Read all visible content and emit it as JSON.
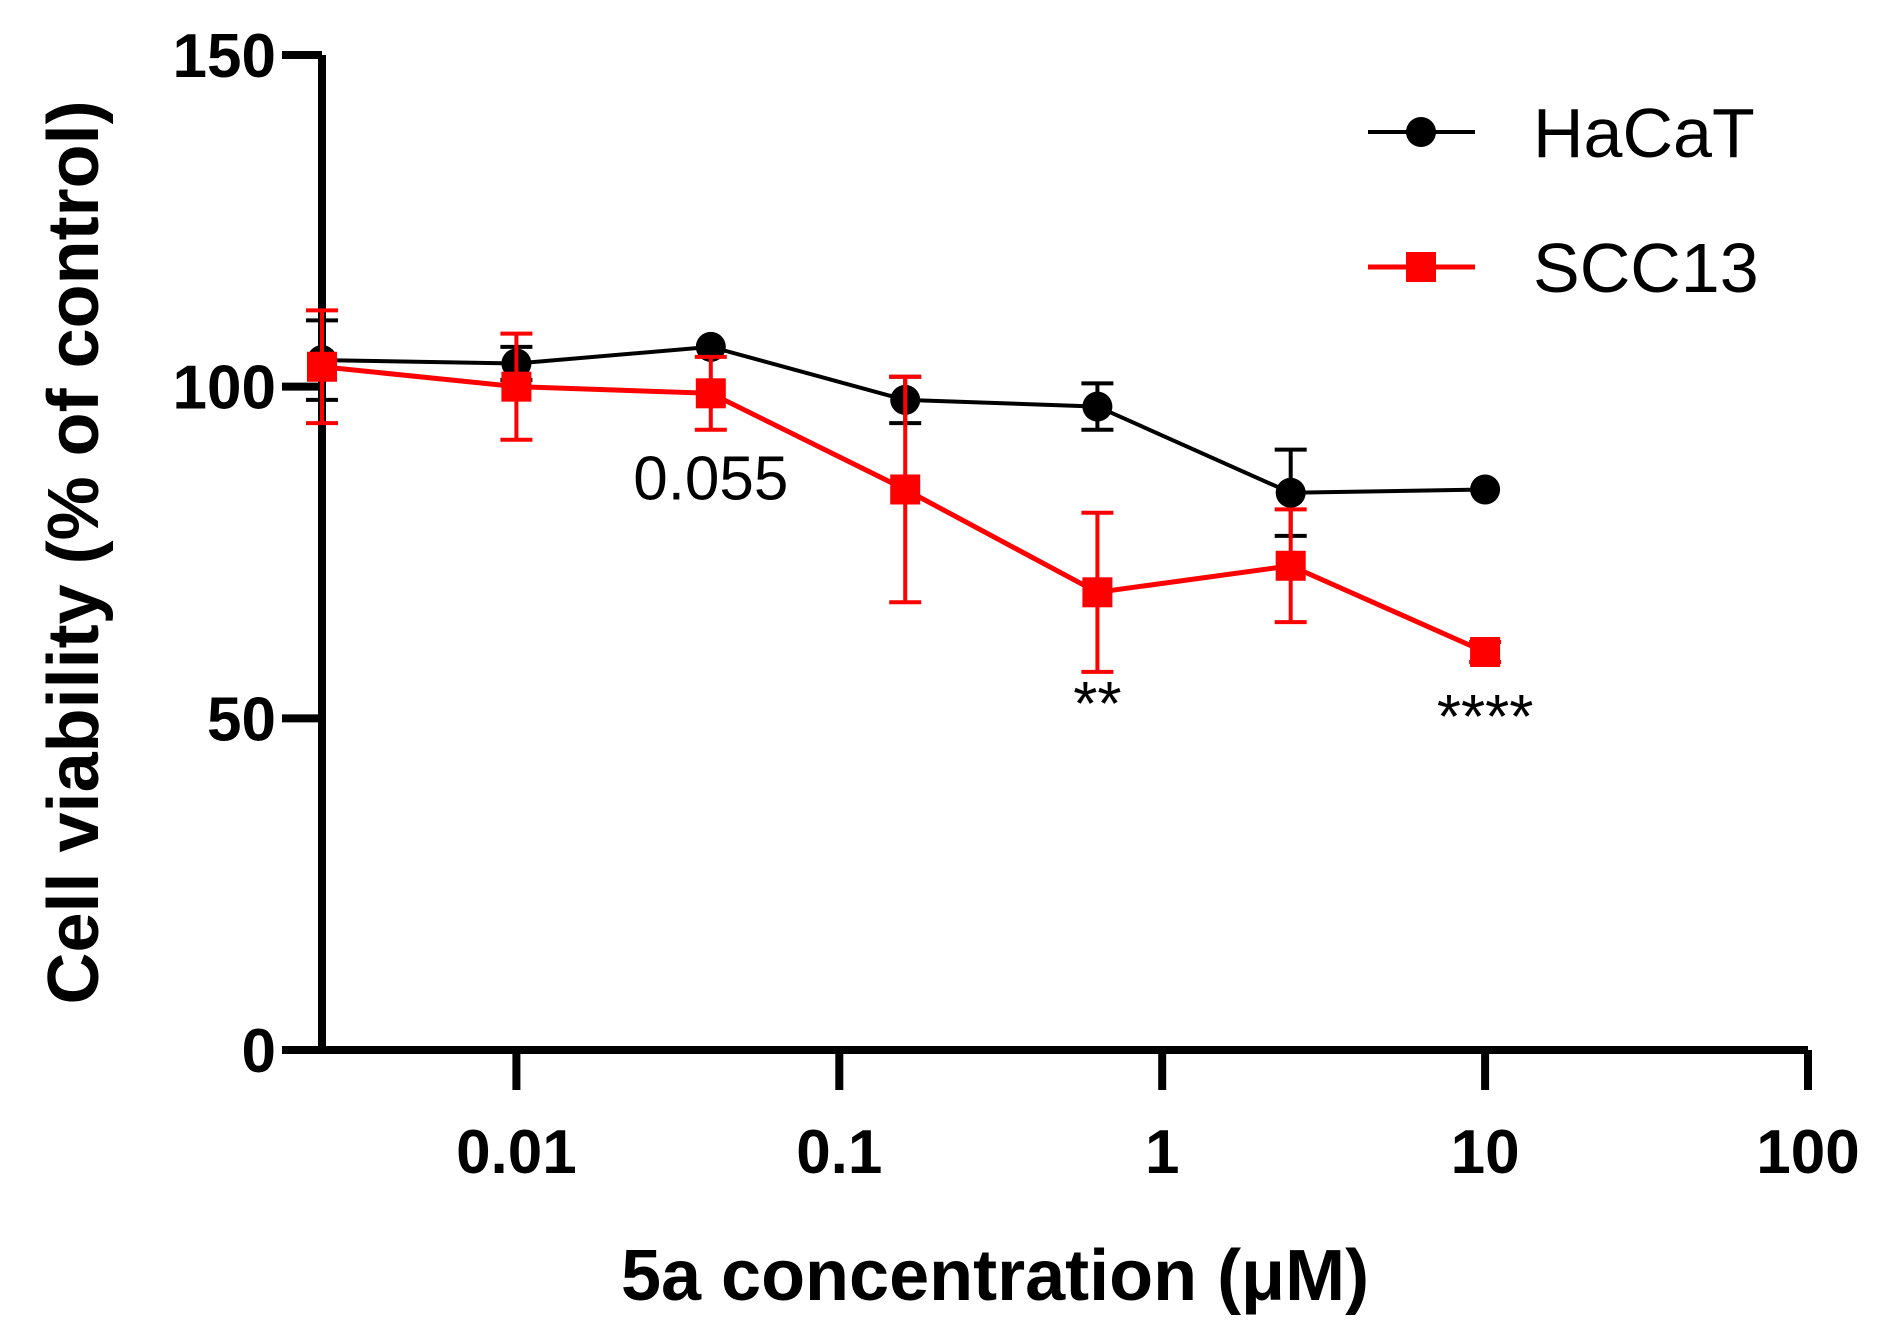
{
  "chart_data": {
    "type": "line",
    "title": "",
    "xlabel": "5a concentration (μM)",
    "ylabel": "Cell viability (% of control)",
    "xscale": "log",
    "xlim": [
      0.0025,
      100
    ],
    "ylim": [
      0,
      150
    ],
    "x_ticks": [
      {
        "value": 0.01,
        "label": "0.01"
      },
      {
        "value": 0.1,
        "label": "0.1"
      },
      {
        "value": 1,
        "label": "1"
      },
      {
        "value": 10,
        "label": "10"
      },
      {
        "value": 100,
        "label": "100"
      }
    ],
    "y_ticks": [
      {
        "value": 0,
        "label": "0"
      },
      {
        "value": 50,
        "label": "50"
      },
      {
        "value": 100,
        "label": "100"
      },
      {
        "value": 150,
        "label": "150"
      }
    ],
    "legend_position": "top-right",
    "series": [
      {
        "name": "HaCaT",
        "color": "#000000",
        "marker": "circle",
        "x": [
          0.0025,
          0.01,
          0.04,
          0.16,
          0.63,
          2.5,
          10
        ],
        "y": [
          104,
          103.5,
          106,
          98,
          97,
          84,
          84.5
        ],
        "err": [
          6,
          2.5,
          0,
          3.5,
          3.5,
          6.5,
          0
        ]
      },
      {
        "name": "SCC13",
        "color": "#ff0000",
        "marker": "square",
        "x": [
          0.0025,
          0.01,
          0.04,
          0.16,
          0.63,
          2.5,
          10
        ],
        "y": [
          103,
          100,
          99,
          84.5,
          69,
          73,
          60
        ],
        "err": [
          8.5,
          8,
          5.5,
          17,
          12,
          8.5,
          1.5
        ]
      }
    ],
    "annotations": [
      {
        "text": "0.055",
        "x": 0.04,
        "y": 83
      },
      {
        "text": "**",
        "x": 0.63,
        "y": 49
      },
      {
        "text": "****",
        "x": 10,
        "y": 47
      }
    ]
  }
}
